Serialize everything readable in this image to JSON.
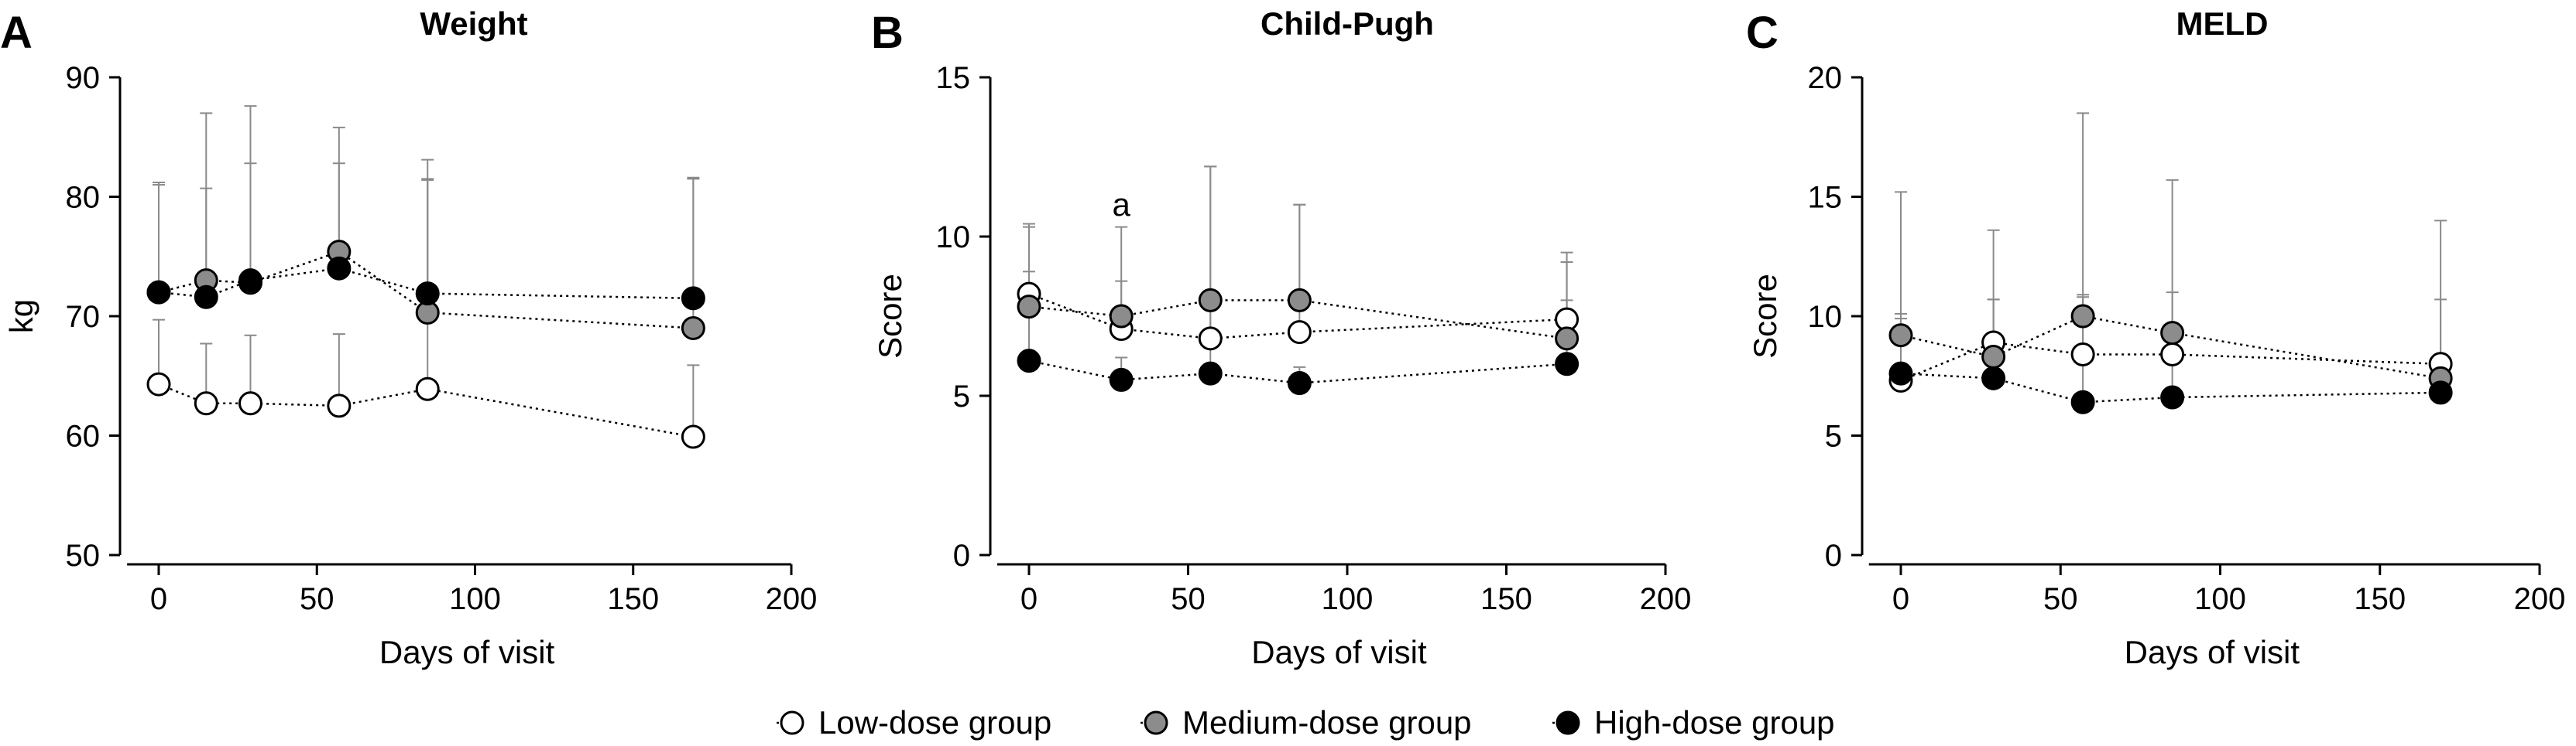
{
  "colors": {
    "low": "#ffffff",
    "medium": "#8c8c8c",
    "high": "#000000",
    "error_bar": "#8a8a8a"
  },
  "chart_data": [
    {
      "type": "line",
      "panel_label": "A",
      "title": "Weight",
      "xlabel": "Days of visit",
      "ylabel": "kg",
      "xlim": [
        -10,
        200
      ],
      "ylim": [
        50,
        90
      ],
      "xticks": [
        0,
        50,
        100,
        150,
        200
      ],
      "yticks": [
        50,
        60,
        70,
        80,
        90
      ],
      "annotations": [],
      "series": [
        {
          "key": "low",
          "x": [
            0,
            15,
            29,
            57,
            85,
            169
          ],
          "y": [
            64.3,
            62.7,
            62.7,
            62.5,
            63.9,
            59.9
          ],
          "err": [
            5.4,
            5.0,
            5.7,
            6.0,
            17.6,
            6.0
          ]
        },
        {
          "key": "medium",
          "x": [
            0,
            15,
            29,
            57,
            85,
            169
          ],
          "y": [
            72.0,
            73.0,
            72.8,
            75.4,
            70.3,
            69.0
          ],
          "err": [
            9.0,
            14.0,
            10.0,
            10.4,
            12.8,
            12.6
          ]
        },
        {
          "key": "high",
          "x": [
            0,
            15,
            29,
            57,
            85,
            169
          ],
          "y": [
            72.0,
            71.6,
            73.0,
            74.0,
            71.9,
            71.5
          ],
          "err": [
            9.2,
            9.1,
            14.6,
            8.8,
            9.5,
            10.0
          ]
        }
      ]
    },
    {
      "type": "line",
      "panel_label": "B",
      "title": "Child-Pugh",
      "xlabel": "Days of visit",
      "ylabel": "Score",
      "xlim": [
        -10,
        200
      ],
      "ylim": [
        0,
        15
      ],
      "xticks": [
        0,
        50,
        100,
        150,
        200
      ],
      "yticks": [
        0,
        5,
        10,
        15
      ],
      "annotations": [
        {
          "text": "a",
          "x": 29,
          "y": 11.0
        }
      ],
      "series": [
        {
          "key": "low",
          "x": [
            0,
            29,
            57,
            85,
            169
          ],
          "y": [
            8.2,
            7.1,
            6.8,
            7.0,
            7.4
          ],
          "err": [
            2.2,
            3.2,
            5.4,
            4.0,
            2.1
          ]
        },
        {
          "key": "medium",
          "x": [
            0,
            29,
            57,
            85,
            169
          ],
          "y": [
            7.8,
            7.5,
            8.0,
            8.0,
            6.8
          ],
          "err": [
            2.5,
            1.1,
            4.2,
            3.0,
            2.4
          ]
        },
        {
          "key": "high",
          "x": [
            0,
            29,
            57,
            85,
            169
          ],
          "y": [
            6.1,
            5.5,
            5.7,
            5.4,
            6.0
          ],
          "err": [
            2.8,
            0.7,
            2.0,
            0.5,
            2.0
          ]
        }
      ]
    },
    {
      "type": "line",
      "panel_label": "C",
      "title": "MELD",
      "xlabel": "Days of visit",
      "ylabel": "Score",
      "xlim": [
        -10,
        200
      ],
      "ylim": [
        0,
        20
      ],
      "xticks": [
        0,
        50,
        100,
        150,
        200
      ],
      "yticks": [
        0,
        5,
        10,
        15,
        20
      ],
      "annotations": [],
      "series": [
        {
          "key": "low",
          "x": [
            0,
            29,
            57,
            85,
            169
          ],
          "y": [
            7.3,
            8.9,
            8.4,
            8.4,
            8.0
          ],
          "err": [
            2.8,
            1.8,
            2.5,
            2.6,
            2.7
          ]
        },
        {
          "key": "medium",
          "x": [
            0,
            29,
            57,
            85,
            169
          ],
          "y": [
            9.2,
            8.3,
            10.0,
            9.3,
            7.4
          ],
          "err": [
            6.0,
            5.3,
            8.5,
            6.4,
            6.6
          ]
        },
        {
          "key": "high",
          "x": [
            0,
            29,
            57,
            85,
            169
          ],
          "y": [
            7.6,
            7.4,
            6.4,
            6.6,
            6.8
          ],
          "err": [
            2.3,
            3.3,
            4.4,
            2.0,
            1.5
          ]
        }
      ]
    }
  ],
  "legend": [
    {
      "key": "low",
      "label": "Low-dose group"
    },
    {
      "key": "medium",
      "label": "Medium-dose group"
    },
    {
      "key": "high",
      "label": "High-dose group"
    }
  ]
}
